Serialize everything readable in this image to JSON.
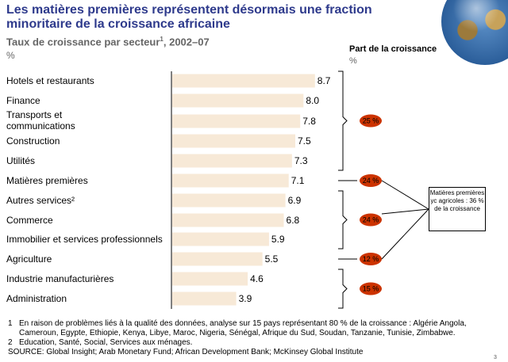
{
  "header": {
    "title": "Les matières premières représentent désormais une fraction minoritaire de la croissance africaine",
    "subtitle": "Taux de croissance par secteur",
    "subtitle_sup": "1",
    "subtitle_years": ", 2002–07",
    "unit": "%"
  },
  "share_panel": {
    "title": "Part de la croissance",
    "unit": "%"
  },
  "chart_data": {
    "type": "bar",
    "orientation": "horizontal",
    "categories": [
      "Hotels et restaurants",
      "Finance",
      "Transports et communications",
      "Construction",
      "Utilités",
      "Matières premières",
      "Autres services²",
      "Commerce",
      "Immobilier et services professionnels",
      "Agriculture",
      "Industrie manufacturières",
      "Administration"
    ],
    "values": [
      8.7,
      8.0,
      7.8,
      7.5,
      7.3,
      7.1,
      6.9,
      6.8,
      5.9,
      5.5,
      4.6,
      3.9
    ],
    "value_labels": [
      "8.7",
      "8.0",
      "7.8",
      "7.5",
      "7.3",
      "7.1",
      "6.9",
      "6.8",
      "5.9",
      "5.5",
      "4.6",
      "3.9"
    ],
    "xlim": [
      0,
      9
    ],
    "bar_color": "#f7e9d7",
    "axis_color": "#000000",
    "groups": [
      {
        "share": "25 %",
        "from": 0,
        "to": 4
      },
      {
        "share": "24 %",
        "from": 5,
        "to": 5
      },
      {
        "share": "24 %",
        "from": 6,
        "to": 8
      },
      {
        "share": "12 %",
        "from": 9,
        "to": 9
      },
      {
        "share": "15 %",
        "from": 10,
        "to": 11
      }
    ],
    "badge_color": "#cc3300"
  },
  "callout": {
    "text": "Matières premières yc agricoles : 36 % de la croissance"
  },
  "notes": [
    {
      "num": "1",
      "text": "En raison de problèmes liés à la qualité des données, analyse sur 15 pays représentant 80 % de la croissance : Algérie Angola, Cameroun, Egypte, Ethiopie, Kenya, Libye, Maroc, Nigeria, Sénégal, Afrique du Sud, Soudan, Tanzanie, Tunisie, Zimbabwe."
    },
    {
      "num": "2",
      "text": "Education, Santé, Social, Services aux ménages."
    }
  ],
  "source": "SOURCE: Global Insight; Arab Monetary Fund; African Development Bank; McKinsey Global Institute",
  "page_number": "3"
}
